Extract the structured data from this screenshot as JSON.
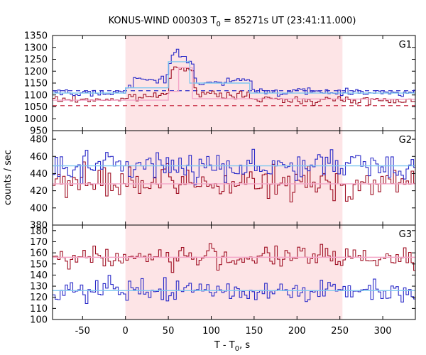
{
  "chart_data": {
    "type": "line",
    "title_prefix": "KONUS-WIND 000303 T",
    "title_sub": "0",
    "title_suffix": " = 85271s UT (23:41:11.000)",
    "xlabel_prefix": "T - T",
    "xlabel_sub": "0",
    "xlabel_suffix": ", s",
    "ylabel": "counts / sec",
    "xlim": [
      -85,
      338
    ],
    "xticks": [
      -50,
      0,
      50,
      100,
      150,
      200,
      250,
      300
    ],
    "highlight_interval": [
      0,
      253
    ],
    "colors": {
      "highlight": "#fde4e6",
      "blue": "#2b2bc8",
      "red": "#a01024",
      "blue_fit": "#7fc8f0",
      "red_fit": "#f4a6c8",
      "blue_background": "#2b2bc8",
      "red_background": "#c0102a"
    },
    "panels": [
      {
        "label": "G1",
        "ylim": [
          950,
          1350
        ],
        "yticks": [
          950,
          1000,
          1050,
          1100,
          1150,
          1200,
          1250,
          1300,
          1350
        ],
        "blue_background_level": 1118,
        "red_background_level": 1055,
        "blue_profile": [
          [
            -85,
            1110
          ],
          [
            0,
            1112
          ],
          [
            6,
            1140
          ],
          [
            12,
            1160
          ],
          [
            48,
            1170
          ],
          [
            52,
            1230
          ],
          [
            56,
            1285
          ],
          [
            62,
            1270
          ],
          [
            70,
            1250
          ],
          [
            78,
            1235
          ],
          [
            82,
            1160
          ],
          [
            92,
            1150
          ],
          [
            110,
            1150
          ],
          [
            130,
            1160
          ],
          [
            145,
            1165
          ],
          [
            150,
            1115
          ],
          [
            253,
            1112
          ],
          [
            338,
            1112
          ]
        ],
        "blue_fit": [
          [
            -85,
            1108
          ],
          [
            0,
            1108
          ],
          [
            0,
            1130
          ],
          [
            50,
            1130
          ],
          [
            50,
            1240
          ],
          [
            75,
            1240
          ],
          [
            75,
            1150
          ],
          [
            145,
            1150
          ],
          [
            145,
            1108
          ],
          [
            338,
            1108
          ]
        ],
        "red_profile": [
          [
            -85,
            1080
          ],
          [
            0,
            1082
          ],
          [
            10,
            1090
          ],
          [
            48,
            1100
          ],
          [
            52,
            1175
          ],
          [
            56,
            1225
          ],
          [
            64,
            1215
          ],
          [
            72,
            1220
          ],
          [
            78,
            1205
          ],
          [
            82,
            1110
          ],
          [
            95,
            1100
          ],
          [
            145,
            1098
          ],
          [
            150,
            1080
          ],
          [
            338,
            1078
          ]
        ],
        "red_fit": [
          [
            -85,
            1078
          ],
          [
            50,
            1078
          ],
          [
            50,
            1115
          ],
          [
            62,
            1115
          ],
          [
            62,
            1215
          ],
          [
            78,
            1215
          ],
          [
            78,
            1085
          ],
          [
            338,
            1082
          ]
        ],
        "blue_noise": 11,
        "red_noise": 11
      },
      {
        "label": "G2",
        "ylim": [
          380,
          490
        ],
        "yticks": [
          380,
          400,
          420,
          440,
          460,
          480
        ],
        "blue_level": 449,
        "red_level": 428,
        "blue_noise": 12,
        "red_noise": 13
      },
      {
        "label": "G3",
        "ylim": [
          100,
          185
        ],
        "yticks": [
          100,
          110,
          120,
          130,
          140,
          150,
          160,
          170,
          180
        ],
        "red_level": 156,
        "blue_level": 126,
        "blue_noise": 7,
        "red_noise": 7
      }
    ]
  }
}
